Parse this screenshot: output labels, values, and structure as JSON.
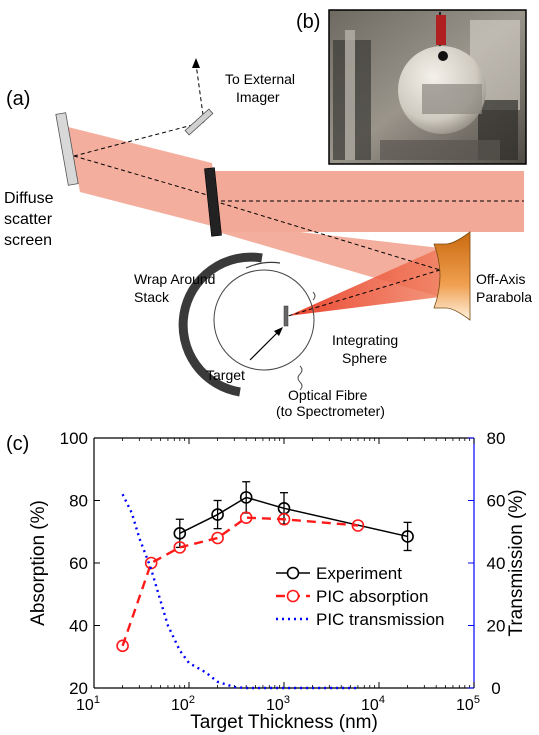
{
  "panels": {
    "a": "(a)",
    "b": "(b)",
    "c": "(c)"
  },
  "schematic": {
    "to_external_imager": [
      "To External",
      "Imager"
    ],
    "diffuse_screen": [
      "Diffuse",
      "scatter",
      "screen"
    ],
    "wrap_around_stack": [
      "Wrap Around",
      "Stack"
    ],
    "off_axis_parabola": [
      "Off-Axis",
      "Parabola"
    ],
    "integrating_sphere": [
      "Integrating",
      "Sphere"
    ],
    "target": "Target",
    "optical_fibre": [
      "Optical Fibre",
      "(to Spectrometer)"
    ]
  },
  "colors": {
    "laser_beam": "#f2a08c",
    "focus_cone": "#e83a22",
    "parabola": "#e0851f",
    "experiment": "#000000",
    "pic_absorption": "#ff1a1a",
    "pic_transmission": "#0000ff"
  },
  "chart_data": {
    "type": "line",
    "xlabel": "Target Thickness (nm)",
    "ylabel": "Absorption (%)",
    "y2label": "Transmission (%)",
    "xscale": "log",
    "xlim": [
      10,
      100000
    ],
    "ylim": [
      20,
      100
    ],
    "y2lim": [
      0,
      80
    ],
    "x_tick_labels": [
      {
        "base": "10",
        "exp": "1"
      },
      {
        "base": "10",
        "exp": "2"
      },
      {
        "base": "10",
        "exp": "3"
      },
      {
        "base": "10",
        "exp": "4"
      },
      {
        "base": "10",
        "exp": "5"
      }
    ],
    "y_ticks": [
      "20",
      "40",
      "60",
      "80",
      "100"
    ],
    "y2_ticks": [
      "0",
      "20",
      "40",
      "60",
      "80"
    ],
    "legend_position": "lower-right",
    "series": [
      {
        "name": "Experiment",
        "axis": "left",
        "style": "solid-circle",
        "x": [
          80,
          200,
          400,
          1000,
          20000
        ],
        "y": [
          69.5,
          75.5,
          81,
          77.5,
          68.5
        ],
        "err": [
          4.5,
          4.5,
          5,
          5,
          4.5
        ]
      },
      {
        "name": "PIC absorption",
        "axis": "left",
        "style": "dashed-circle",
        "x": [
          20,
          40,
          80,
          200,
          400,
          1000,
          6000
        ],
        "y": [
          33.5,
          60,
          65,
          68,
          74.5,
          74,
          72
        ]
      },
      {
        "name": "PIC transmission",
        "axis": "right",
        "style": "dotted",
        "x": [
          20,
          25,
          30,
          40,
          50,
          60,
          80,
          100,
          150,
          200,
          300,
          400,
          1000,
          3000,
          6000
        ],
        "y": [
          62,
          56,
          48,
          38,
          28,
          20,
          12,
          8,
          5,
          2,
          0.3,
          0,
          0,
          0,
          0
        ]
      }
    ]
  }
}
